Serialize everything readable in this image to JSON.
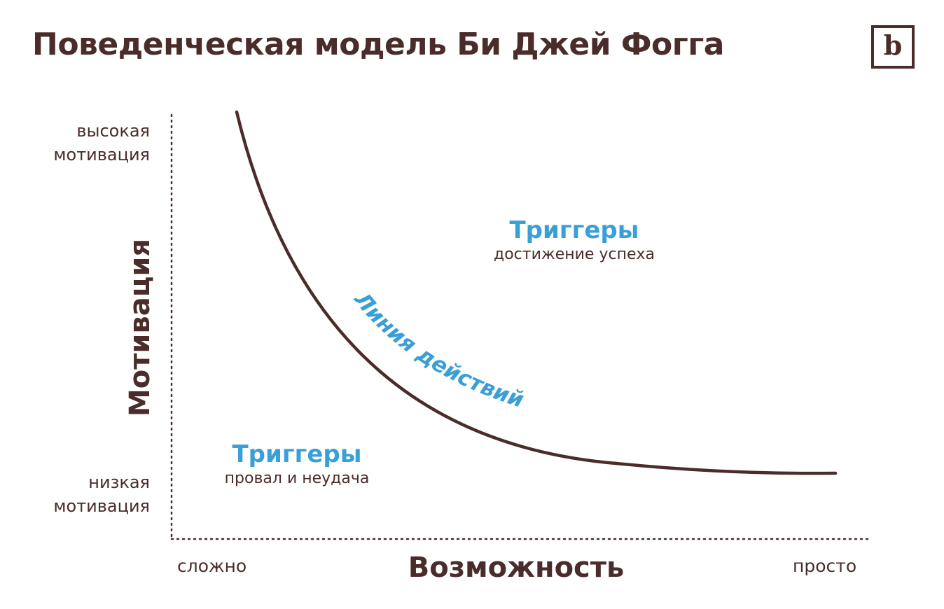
{
  "title": "Поведенческая модель Би Джей Фогга",
  "logo": {
    "letter": "b"
  },
  "y_axis": {
    "title": "Мотивация",
    "high_label": [
      "высокая",
      "мотивация"
    ],
    "low_label": [
      "низкая",
      "мотивация"
    ]
  },
  "x_axis": {
    "title": "Возможность",
    "left_label": "сложно",
    "right_label": "просто"
  },
  "curve": {
    "label": "Линия действий"
  },
  "triggers": {
    "success": {
      "title": "Триггеры",
      "subtitle": "достижение успеха"
    },
    "failure": {
      "title": "Триггеры",
      "subtitle": "провал и неудача"
    }
  },
  "colors": {
    "primary": "#4a2c2a",
    "accent": "#3a9fd6",
    "background": "#ffffff"
  }
}
